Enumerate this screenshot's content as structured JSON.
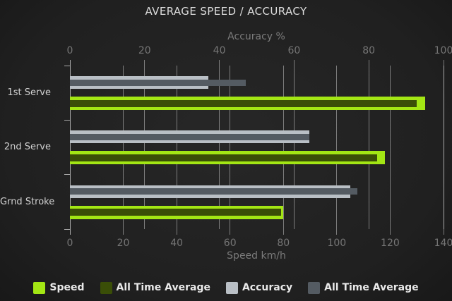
{
  "title": "AVERAGE SPEED / ACCURACY",
  "colors": {
    "speed": "#a3e614",
    "speed_all_time_avg": "#3a4e07",
    "accuracy": "#b9bfc5",
    "accuracy_all_time_avg": "#545b62",
    "background": "#1e1e1e",
    "grid": "#d7d7d7",
    "text_dim": "#757575",
    "text_light": "#dcdcdc"
  },
  "chart_data": {
    "type": "bar",
    "orientation": "horizontal",
    "title": "AVERAGE SPEED / ACCURACY",
    "categories": [
      "1st Serve",
      "2nd Serve",
      "Grnd Stroke"
    ],
    "axes": {
      "top": {
        "label": "Accuracy %",
        "min": 0,
        "max": 100,
        "ticks": [
          0,
          20,
          40,
          60,
          80,
          100
        ]
      },
      "bottom": {
        "label": "Speed km/h",
        "min": 0,
        "max": 140,
        "ticks": [
          0,
          20,
          40,
          60,
          80,
          100,
          120,
          140
        ]
      }
    },
    "series": [
      {
        "name": "Speed",
        "axis": "bottom",
        "color": "#a3e614",
        "values": [
          133,
          118,
          80
        ]
      },
      {
        "name": "All Time Average",
        "axis": "bottom",
        "color": "#3a4e07",
        "values": [
          130,
          115,
          79
        ]
      },
      {
        "name": "Accuracy",
        "axis": "top",
        "color": "#b9bfc5",
        "values": [
          37,
          64,
          75
        ]
      },
      {
        "name": "All Time Average",
        "axis": "top",
        "color": "#545b62",
        "values": [
          47,
          64,
          77
        ]
      }
    ],
    "legend": [
      {
        "label": "Speed",
        "color": "#a3e614"
      },
      {
        "label": "All Time Average",
        "color": "#3a4e07"
      },
      {
        "label": "Accuracy",
        "color": "#b9bfc5"
      },
      {
        "label": "All Time Average",
        "color": "#545b62"
      }
    ],
    "grid": true,
    "legend_position": "bottom"
  }
}
